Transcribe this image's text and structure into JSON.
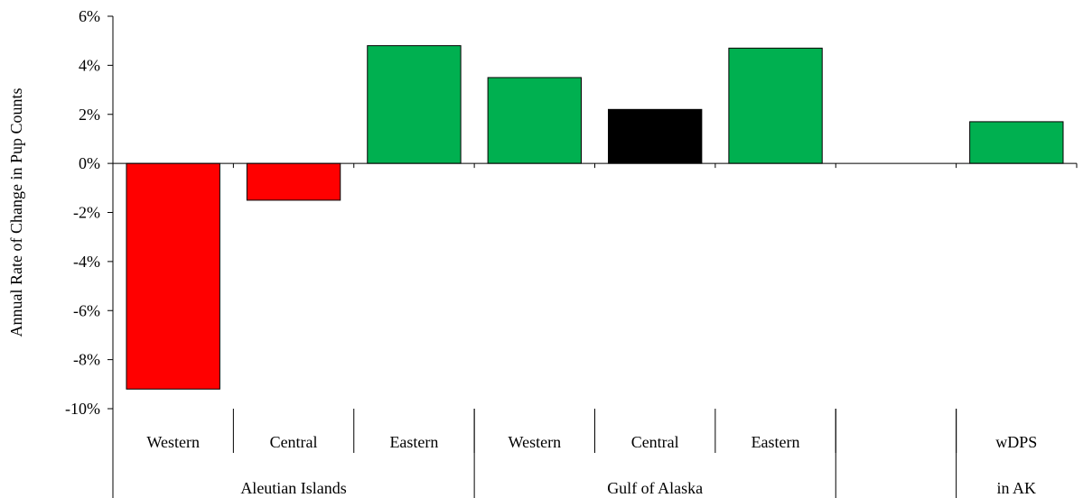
{
  "chart_data": {
    "type": "bar",
    "ylabel": "Annual Rate of Change in Pup Counts",
    "xlabel": "",
    "ylim": [
      -10,
      6
    ],
    "y_ticks": [
      6,
      4,
      2,
      0,
      -2,
      -4,
      -6,
      -8,
      -10
    ],
    "y_tick_format": "percent",
    "categories": [
      "Western",
      "Central",
      "Eastern",
      "Western",
      "Central",
      "Eastern",
      "",
      "wDPS"
    ],
    "values": [
      -9.2,
      -1.5,
      4.8,
      3.5,
      2.2,
      4.7,
      null,
      1.7
    ],
    "bar_colors": [
      "#ff0000",
      "#ff0000",
      "#00b050",
      "#00b050",
      "#000000",
      "#00b050",
      null,
      "#00b050"
    ],
    "groups": [
      {
        "label": "Aleutian Islands",
        "start": 0,
        "end": 2
      },
      {
        "label": "Gulf of Alaska",
        "start": 3,
        "end": 5
      },
      {
        "label": "",
        "start": 6,
        "end": 6
      },
      {
        "label": "in AK",
        "start": 7,
        "end": 7
      }
    ],
    "grid": false,
    "legend": "none"
  }
}
